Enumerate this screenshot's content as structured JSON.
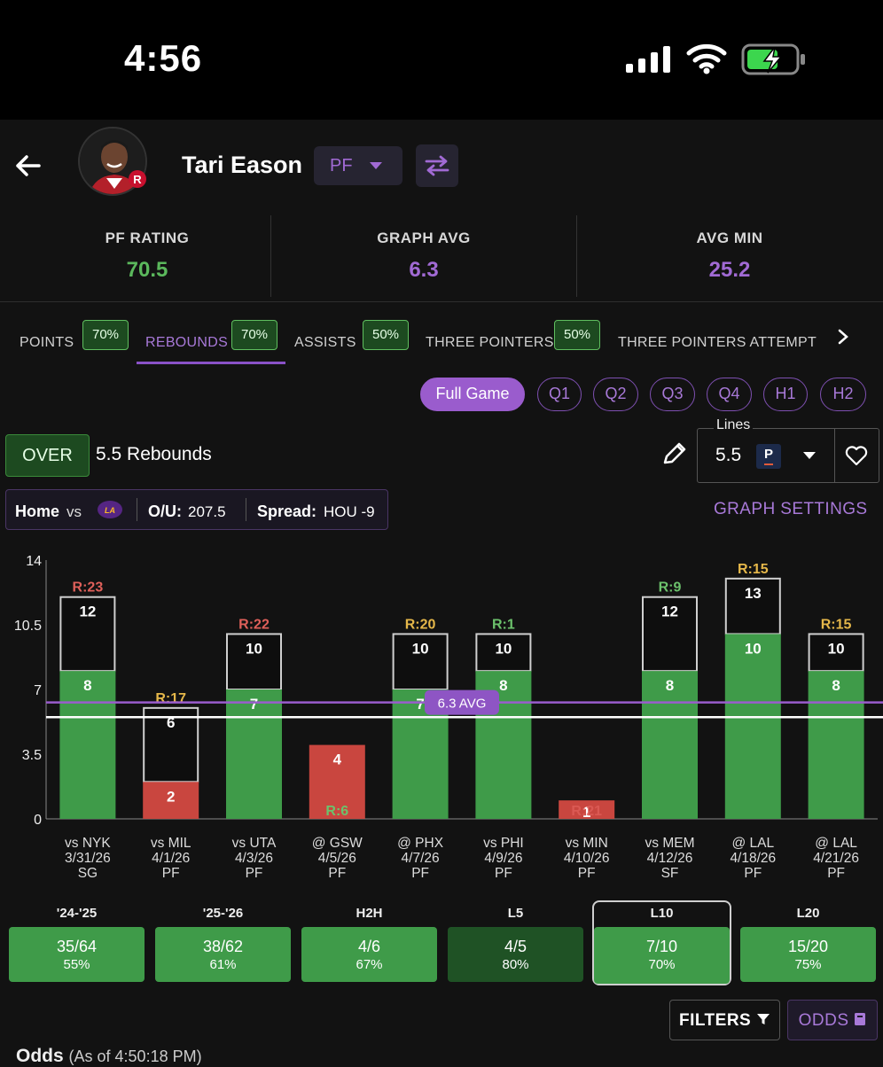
{
  "status": {
    "time": "4:56"
  },
  "player": {
    "name": "Tari Eason",
    "position": "PF"
  },
  "stats": [
    {
      "label": "PF RATING",
      "value": "70.5",
      "color": "#5bb85c"
    },
    {
      "label": "GRAPH AVG",
      "value": "6.3",
      "color": "#a16ad4"
    },
    {
      "label": "AVG MIN",
      "value": "25.2",
      "color": "#a16ad4"
    }
  ],
  "tabs": [
    {
      "label": "POINTS",
      "pct": "70%"
    },
    {
      "label": "REBOUNDS",
      "pct": "70%",
      "active": true
    },
    {
      "label": "ASSISTS",
      "pct": "50%"
    },
    {
      "label": "THREE POINTERS",
      "pct": "50%"
    },
    {
      "label": "THREE POINTERS ATTEMPTEI"
    }
  ],
  "periods": [
    "Full Game",
    "Q1",
    "Q2",
    "Q3",
    "Q4",
    "H1",
    "H2"
  ],
  "prop": {
    "side": "OVER",
    "text": "5.5 Rebounds"
  },
  "lines": {
    "label": "Lines",
    "value": "5.5",
    "book_logo": "P"
  },
  "game_info": {
    "home": "Home",
    "vs": "vs",
    "ou_label": "O/U:",
    "ou_value": "207.5",
    "spread_label": "Spread:",
    "spread_value": "HOU -9"
  },
  "graph_settings": "GRAPH SETTINGS",
  "chart_data": {
    "type": "bar",
    "ylim": [
      0,
      14
    ],
    "yticks": [
      "0",
      "3.5",
      "7",
      "10.5",
      "14"
    ],
    "line_value": 5.5,
    "avg_value": 6.3,
    "avg_label": "6.3 AVG",
    "games": [
      {
        "opp": "vs NYK",
        "date": "3/31/26",
        "pos": "SG",
        "value": 8,
        "projected": 12,
        "rank": "R:23",
        "hit": true
      },
      {
        "opp": "vs MIL",
        "date": "4/1/26",
        "pos": "PF",
        "value": 2,
        "projected": 6,
        "rank": "R:17",
        "hit": false
      },
      {
        "opp": "vs UTA",
        "date": "4/3/26",
        "pos": "PF",
        "value": 7,
        "projected": 10,
        "rank": "R:22",
        "hit": true
      },
      {
        "opp": "@ GSW",
        "date": "4/5/26",
        "pos": "PF",
        "value": 4,
        "projected": null,
        "rank": "R:6",
        "hit": false
      },
      {
        "opp": "@ PHX",
        "date": "4/7/26",
        "pos": "PF",
        "value": 7,
        "projected": 10,
        "rank": "R:20",
        "hit": true
      },
      {
        "opp": "vs PHI",
        "date": "4/9/26",
        "pos": "PF",
        "value": 8,
        "projected": 10,
        "rank": "R:1",
        "hit": true
      },
      {
        "opp": "vs MIN",
        "date": "4/10/26",
        "pos": "PF",
        "value": 1,
        "projected": null,
        "rank": "R:21",
        "hit": false
      },
      {
        "opp": "vs MEM",
        "date": "4/12/26",
        "pos": "SF",
        "value": 8,
        "projected": 12,
        "rank": "R:9",
        "hit": true
      },
      {
        "opp": "@ LAL",
        "date": "4/18/26",
        "pos": "PF",
        "value": 10,
        "projected": 13,
        "rank": "R:15",
        "hit": true
      },
      {
        "opp": "@ LAL",
        "date": "4/21/26",
        "pos": "PF",
        "value": 8,
        "projected": 10,
        "rank": "R:15",
        "hit": true
      }
    ]
  },
  "hit_rates": [
    {
      "label": "'24-'25",
      "fraction": "35/64",
      "pct": "55%"
    },
    {
      "label": "'25-'26",
      "fraction": "38/62",
      "pct": "61%"
    },
    {
      "label": "H2H",
      "fraction": "4/6",
      "pct": "67%"
    },
    {
      "label": "L5",
      "fraction": "4/5",
      "pct": "80%"
    },
    {
      "label": "L10",
      "fraction": "7/10",
      "pct": "70%",
      "selected": true
    },
    {
      "label": "L20",
      "fraction": "15/20",
      "pct": "75%"
    }
  ],
  "filters_label": "FILTERS",
  "odds_label": "ODDS",
  "odds": {
    "title": "Odds",
    "asof": "(As of 4:50:18 PM)"
  }
}
